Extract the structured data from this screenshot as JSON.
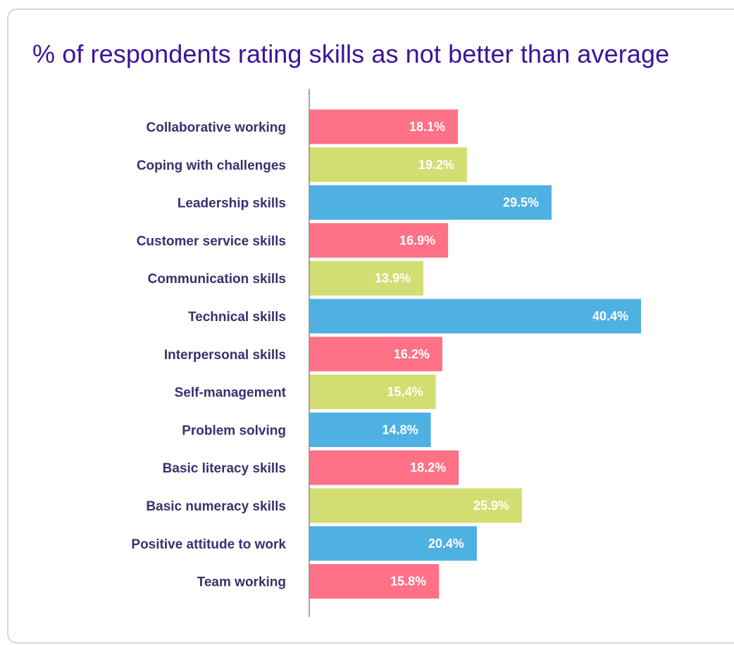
{
  "chart_data": {
    "type": "bar",
    "orientation": "horizontal",
    "title": "% of respondents rating skills as not better than average",
    "xlabel": "",
    "ylabel": "",
    "grid": false,
    "categories": [
      "Collaborative working",
      "Coping with challenges",
      "Leadership skills",
      "Customer service skills",
      "Communication skills",
      "Technical skills",
      "Interpersonal skills",
      "Self-management",
      "Problem solving",
      "Basic literacy skills",
      "Basic numeracy skills",
      "Positive attitude to work",
      "Team working"
    ],
    "values": [
      18.1,
      19.2,
      29.5,
      16.9,
      13.9,
      40.4,
      16.2,
      15.4,
      14.8,
      18.2,
      25.9,
      20.4,
      15.8
    ],
    "value_labels": [
      "18.1%",
      "19.2%",
      "29.5%",
      "16.9%",
      "13.9%",
      "40.4%",
      "16.2%",
      "15.4%",
      "14.8%",
      "18.2%",
      "25.9%",
      "20.4%",
      "15.8%"
    ],
    "xlim": [
      0,
      45
    ],
    "colors": [
      "#ff7186",
      "#d3de72",
      "#4fb0e2",
      "#ff7186",
      "#d3de72",
      "#4fb0e2",
      "#ff7186",
      "#d3de72",
      "#4fb0e2",
      "#ff7186",
      "#d3de72",
      "#4fb0e2",
      "#ff7186"
    ],
    "axis_color": "#8a8a8a"
  }
}
